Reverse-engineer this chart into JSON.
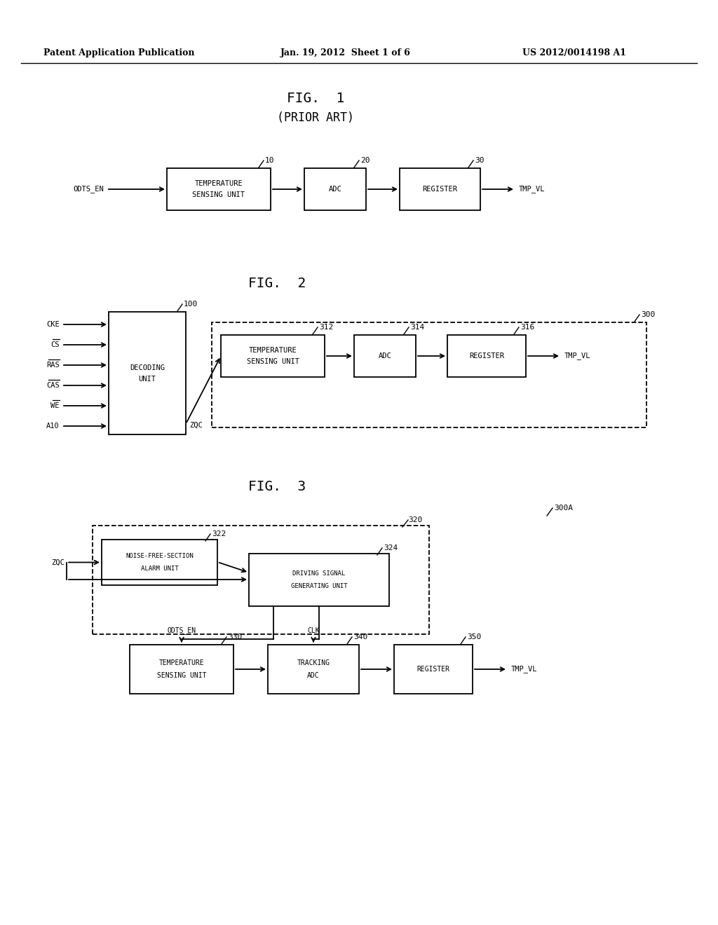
{
  "bg_color": "#ffffff",
  "text_color": "#000000",
  "header_left": "Patent Application Publication",
  "header_mid": "Jan. 19, 2012  Sheet 1 of 6",
  "header_right": "US 2012/0014198 A1",
  "fig1_title": "FIG.  1",
  "fig1_subtitle": "(PRIOR ART)",
  "fig2_title": "FIG.  2",
  "fig3_title": "FIG.  3"
}
